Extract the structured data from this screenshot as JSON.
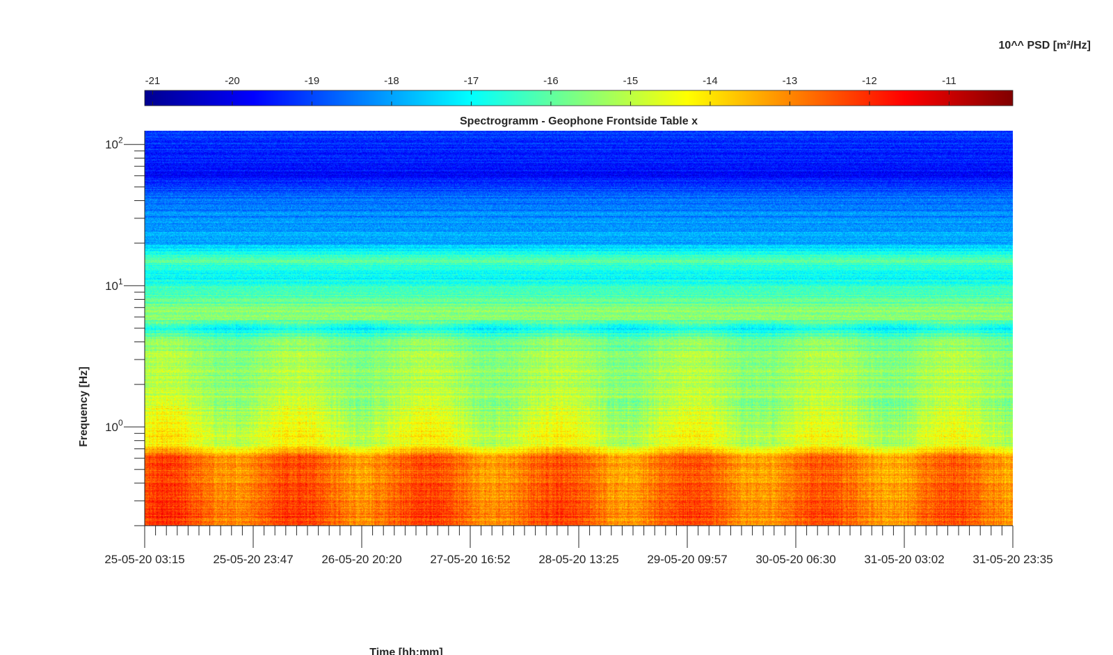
{
  "chart_data": {
    "type": "heatmap",
    "title": "Spectrogramm - Geophone Frontside Table x",
    "xlabel": "Time [hh:mm]",
    "ylabel": "Frequency [Hz]",
    "yscale": "log",
    "ylim": [
      0.2,
      125
    ],
    "x_tick_labels": [
      "25-05-20 03:15",
      "25-05-20 23:47",
      "26-05-20 20:20",
      "27-05-20 16:52",
      "28-05-20 13:25",
      "29-05-20 09:57",
      "30-05-20 06:30",
      "31-05-20 03:02",
      "31-05-20 23:35"
    ],
    "y_tick_labels": [
      {
        "base": "10",
        "exp": "0",
        "value": 1
      },
      {
        "base": "10",
        "exp": "1",
        "value": 10
      },
      {
        "base": "10",
        "exp": "2",
        "value": 100
      }
    ],
    "colorbar": {
      "label": "10^^ PSD [m²/Hz]",
      "ticks": [
        "-21",
        "-20",
        "-19",
        "-18",
        "-17",
        "-16",
        "-15",
        "-14",
        "-13",
        "-12",
        "-11"
      ],
      "tick_values": [
        -21,
        -20,
        -19,
        -18,
        -17,
        -16,
        -15,
        -14,
        -13,
        -12,
        -11
      ],
      "range": [
        -21.1,
        -10.2
      ],
      "colormap": "jet"
    },
    "frequency_profile": [
      {
        "f": 0.2,
        "log10_psd": -12.5
      },
      {
        "f": 0.6,
        "log10_psd": -12.7
      },
      {
        "f": 0.75,
        "log10_psd": -14.5
      },
      {
        "f": 1.5,
        "log10_psd": -15.0
      },
      {
        "f": 4,
        "log10_psd": -15.6
      },
      {
        "f": 5,
        "log10_psd": -17.0
      },
      {
        "f": 6,
        "log10_psd": -15.3
      },
      {
        "f": 12,
        "log10_psd": -17.1
      },
      {
        "f": 15,
        "log10_psd": -16.0
      },
      {
        "f": 20,
        "log10_psd": -17.8
      },
      {
        "f": 40,
        "log10_psd": -18.5
      },
      {
        "f": 60,
        "log10_psd": -19.6
      },
      {
        "f": 125,
        "log10_psd": -19.2
      }
    ]
  }
}
